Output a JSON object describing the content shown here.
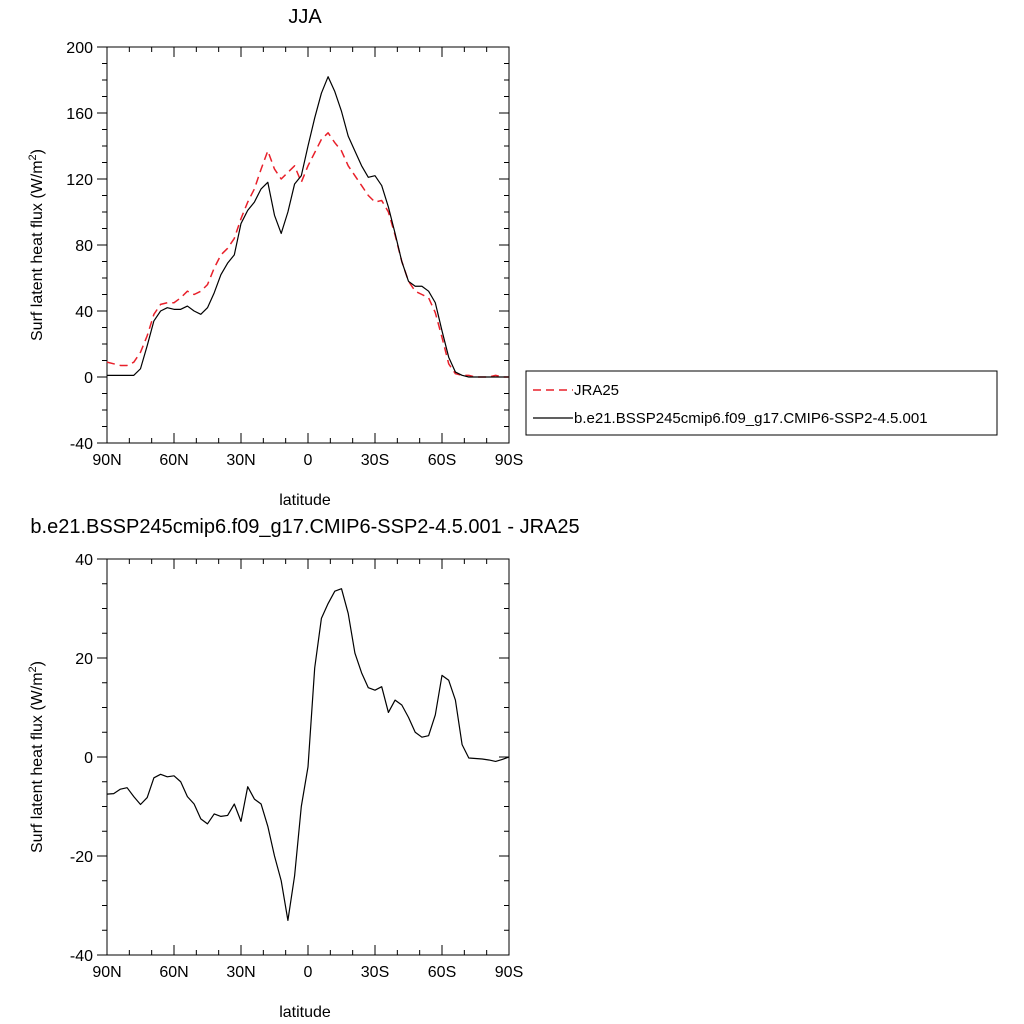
{
  "chart_data": [
    {
      "type": "line",
      "title": "JJA",
      "xlabel": "latitude",
      "ylabel": "Surf latent heat flux (W/m",
      "ylabel_sup": "2",
      "ylabel_tail": ")",
      "xlim": [
        90,
        -90
      ],
      "ylim": [
        -40,
        200
      ],
      "x_ticks": [
        90,
        60,
        30,
        0,
        -30,
        -60,
        -90
      ],
      "x_tick_labels": [
        "90N",
        "60N",
        "30N",
        "0",
        "30S",
        "60S",
        "90S"
      ],
      "y_ticks": [
        -40,
        0,
        40,
        80,
        120,
        160,
        200
      ],
      "y_tick_labels": [
        "-40",
        "0",
        "40",
        "80",
        "120",
        "160",
        "200"
      ],
      "legend_position": "right",
      "x": [
        90,
        87,
        84,
        81,
        78,
        75,
        72,
        69,
        66,
        63,
        60,
        57,
        54,
        51,
        48,
        45,
        42,
        39,
        36,
        33,
        30,
        27,
        24,
        21,
        18,
        15,
        12,
        9,
        6,
        3,
        0,
        -3,
        -6,
        -9,
        -12,
        -15,
        -18,
        -21,
        -24,
        -27,
        -30,
        -33,
        -36,
        -39,
        -42,
        -45,
        -48,
        -51,
        -54,
        -57,
        -60,
        -63,
        -66,
        -69,
        -72,
        -75,
        -78,
        -81,
        -84,
        -87,
        -90
      ],
      "series": [
        {
          "name": "JRA25",
          "color": "#e8202a",
          "dash": "8,5",
          "values": [
            9,
            8,
            7,
            7,
            9,
            15,
            25,
            38,
            44,
            45,
            45,
            48,
            52,
            50,
            52,
            56,
            66,
            74,
            78,
            84,
            96,
            106,
            114,
            126,
            137,
            126,
            120,
            124,
            128,
            118,
            128,
            136,
            144,
            148,
            142,
            137,
            128,
            122,
            116,
            110,
            106,
            107,
            100,
            86,
            70,
            58,
            52,
            50,
            48,
            39,
            24,
            8,
            2,
            1,
            1,
            0,
            0,
            0,
            1,
            0,
            0
          ]
        },
        {
          "name": "b.e21.BSSP245cmip6.f09_g17.CMIP6-SSP2-4.5.001",
          "color": "#000000",
          "dash": "",
          "values": [
            1,
            1,
            1,
            1,
            1,
            5,
            19,
            34,
            40,
            42,
            41,
            41,
            43,
            40,
            38,
            42,
            51,
            62,
            69,
            74,
            93,
            101,
            106,
            114,
            118,
            98,
            87,
            100,
            117,
            122,
            140,
            157,
            172,
            182,
            173,
            161,
            146,
            137,
            128,
            121,
            122,
            116,
            103,
            87,
            70,
            58,
            55,
            55,
            52,
            45,
            28,
            12,
            3,
            1,
            0,
            0,
            0,
            0,
            0,
            0,
            0
          ]
        }
      ]
    },
    {
      "type": "line",
      "title": "b.e21.BSSP245cmip6.f09_g17.CMIP6-SSP2-4.5.001 - JRA25",
      "xlabel": "latitude",
      "ylabel": "Surf latent heat flux (W/m",
      "ylabel_sup": "2",
      "ylabel_tail": ")",
      "xlim": [
        90,
        -90
      ],
      "ylim": [
        -40,
        40
      ],
      "x_ticks": [
        90,
        60,
        30,
        0,
        -30,
        -60,
        -90
      ],
      "x_tick_labels": [
        "90N",
        "60N",
        "30N",
        "0",
        "30S",
        "60S",
        "90S"
      ],
      "y_ticks": [
        -40,
        -20,
        0,
        20,
        40
      ],
      "y_tick_labels": [
        "-40",
        "-20",
        "0",
        "20",
        "40"
      ],
      "x": [
        90,
        87,
        84,
        81,
        78,
        75,
        72,
        69,
        66,
        63,
        60,
        57,
        54,
        51,
        48,
        45,
        42,
        39,
        36,
        33,
        30,
        27,
        24,
        21,
        18,
        15,
        12,
        9,
        6,
        3,
        0,
        -3,
        -6,
        -9,
        -12,
        -15,
        -18,
        -21,
        -24,
        -27,
        -30,
        -33,
        -36,
        -39,
        -42,
        -45,
        -48,
        -51,
        -54,
        -57,
        -60,
        -63,
        -66,
        -69,
        -72,
        -75,
        -78,
        -81,
        -84,
        -87,
        -90
      ],
      "series": [
        {
          "name": "",
          "color": "#000000",
          "dash": "",
          "values": [
            -7.5,
            -7.4,
            -6.5,
            -6.2,
            -8,
            -9.6,
            -8.2,
            -4.2,
            -3.5,
            -4,
            -3.8,
            -5,
            -8,
            -9.5,
            -12.5,
            -13.5,
            -11.5,
            -12,
            -11.8,
            -9.5,
            -13,
            -6,
            -8.5,
            -9.5,
            -14,
            -20,
            -25,
            -33,
            -24,
            -10,
            -2,
            18,
            28,
            31,
            33.5,
            34,
            29,
            21,
            17,
            14,
            13.5,
            14.2,
            9,
            11.5,
            10.5,
            8,
            5,
            4,
            4.3,
            8.5,
            16.5,
            15.5,
            11.5,
            2.5,
            -0.2,
            -0.3,
            -0.4,
            -0.6,
            -0.9,
            -0.5,
            0
          ]
        }
      ]
    }
  ]
}
